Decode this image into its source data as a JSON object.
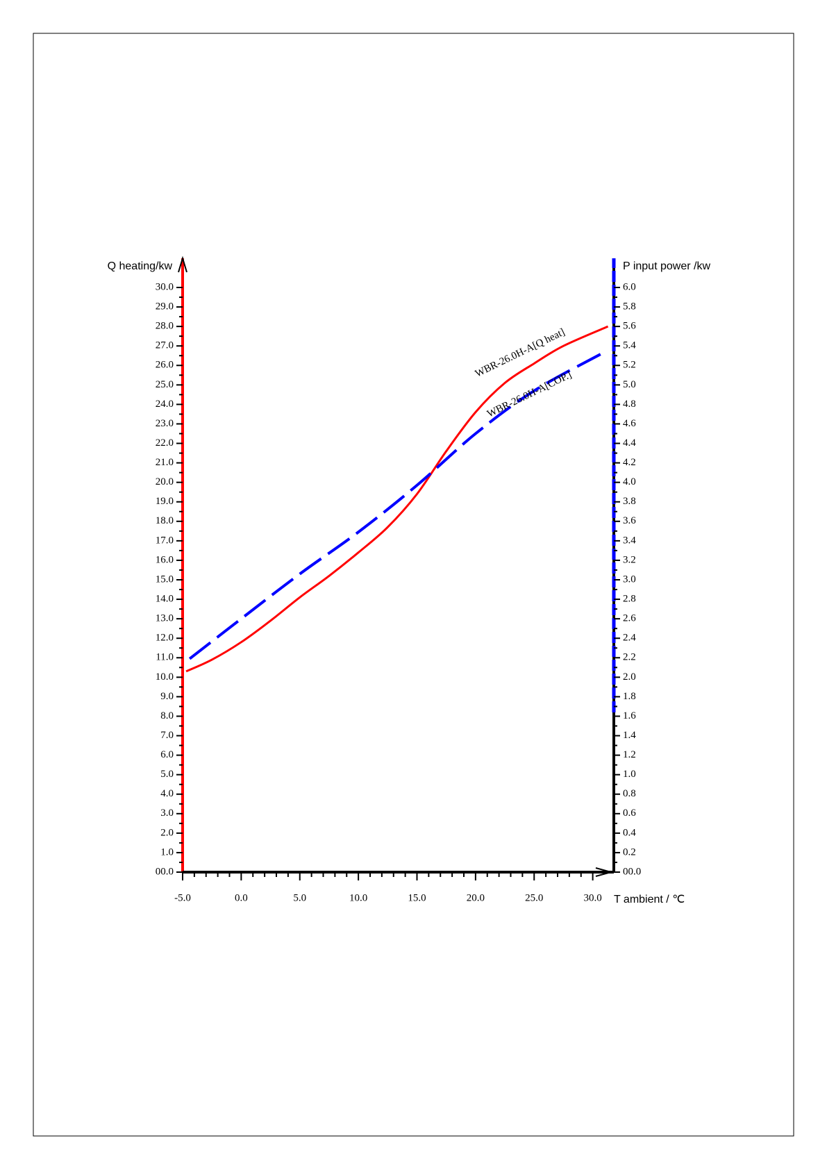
{
  "chart_data": {
    "type": "line",
    "y_label": "Q heating/kw",
    "y2_label": "P input power /kw",
    "x_label": "T ambient / ℃",
    "xlim": [
      -5,
      31.8
    ],
    "xticks": [
      {
        "value": -5,
        "label": "-5.0"
      },
      {
        "value": 0,
        "label": "0.0"
      },
      {
        "value": 5,
        "label": "5.0"
      },
      {
        "value": 10,
        "label": "10.0"
      },
      {
        "value": 15,
        "label": "15.0"
      },
      {
        "value": 20,
        "label": "20.0"
      },
      {
        "value": 25,
        "label": "25.0"
      },
      {
        "value": 30,
        "label": "30.0"
      }
    ],
    "ylim": [
      0,
      30
    ],
    "yticks": [
      {
        "value": 0,
        "label": "00.0"
      },
      {
        "value": 1,
        "label": "1.0"
      },
      {
        "value": 2,
        "label": "2.0"
      },
      {
        "value": 3,
        "label": "3.0"
      },
      {
        "value": 4,
        "label": "4.0"
      },
      {
        "value": 5,
        "label": "5.0"
      },
      {
        "value": 6,
        "label": "6.0"
      },
      {
        "value": 7,
        "label": "7.0"
      },
      {
        "value": 8,
        "label": "8.0"
      },
      {
        "value": 9,
        "label": "9.0"
      },
      {
        "value": 10,
        "label": "10.0"
      },
      {
        "value": 11,
        "label": "11.0"
      },
      {
        "value": 12,
        "label": "12.0"
      },
      {
        "value": 13,
        "label": "13.0"
      },
      {
        "value": 14,
        "label": "14.0"
      },
      {
        "value": 15,
        "label": "15.0"
      },
      {
        "value": 16,
        "label": "16.0"
      },
      {
        "value": 17,
        "label": "17.0"
      },
      {
        "value": 18,
        "label": "18.0"
      },
      {
        "value": 19,
        "label": "19.0"
      },
      {
        "value": 20,
        "label": "20.0"
      },
      {
        "value": 21,
        "label": "21.0"
      },
      {
        "value": 22,
        "label": "22.0"
      },
      {
        "value": 23,
        "label": "23.0"
      },
      {
        "value": 24,
        "label": "24.0"
      },
      {
        "value": 25,
        "label": "25.0"
      },
      {
        "value": 26,
        "label": "26.0"
      },
      {
        "value": 27,
        "label": "27.0"
      },
      {
        "value": 28,
        "label": "28.0"
      },
      {
        "value": 29,
        "label": "29.0"
      },
      {
        "value": 30,
        "label": "30.0"
      }
    ],
    "y2lim": [
      0,
      6
    ],
    "y2ticks": [
      {
        "value": 0,
        "label": "00.0"
      },
      0.2,
      0.4,
      0.6,
      0.8,
      {
        "value": 1,
        "label": "1.0"
      },
      1.2,
      1.4,
      1.6,
      1.8,
      {
        "value": 2,
        "label": "2.0"
      },
      2.2,
      2.4,
      2.6,
      2.8,
      {
        "value": 3,
        "label": "3.0"
      },
      3.2,
      3.4,
      3.6,
      3.8,
      {
        "value": 4,
        "label": "4.0"
      },
      4.2,
      4.4,
      4.6,
      4.8,
      {
        "value": 5,
        "label": "5.0"
      },
      5.2,
      5.4,
      5.6,
      5.8,
      {
        "value": 6,
        "label": "6.0"
      }
    ],
    "series": [
      {
        "name": "WBR-26.0H-A[Q heat]",
        "color": "#ff0000",
        "dashed": false,
        "x": [
          -4.7,
          -2.5,
          0,
          2.5,
          5,
          7.5,
          10,
          12.5,
          15,
          17.5,
          20,
          22.5,
          25,
          27.5,
          31.3
        ],
        "values": [
          10.3,
          10.9,
          11.8,
          12.9,
          14.1,
          15.2,
          16.4,
          17.7,
          19.4,
          21.6,
          23.6,
          25.1,
          26.1,
          27.0,
          28.0
        ]
      },
      {
        "name": "WBR-26.0H-A[COP.]",
        "color": "#0000ff",
        "dashed": true,
        "axis": "y2",
        "x": [
          -4.4,
          0,
          5,
          10,
          15,
          20,
          25,
          30.9
        ],
        "values": [
          2.19,
          2.6,
          3.06,
          3.49,
          3.97,
          4.5,
          4.94,
          5.33
        ]
      }
    ]
  }
}
